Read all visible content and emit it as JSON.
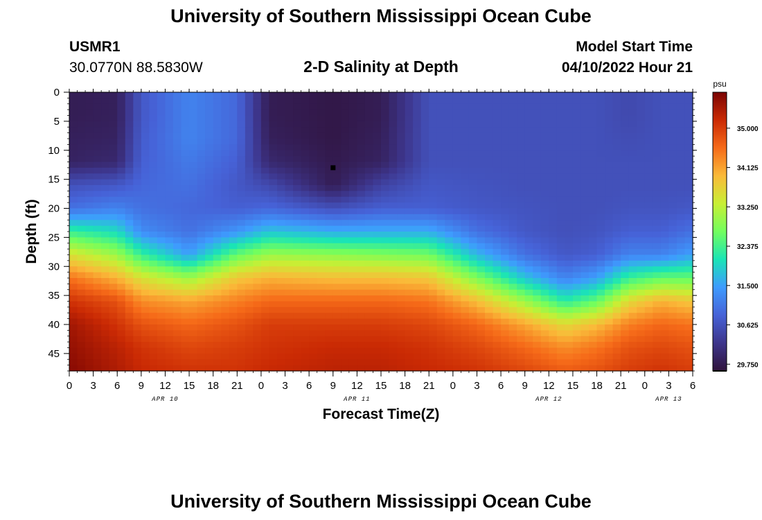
{
  "page": {
    "title": "University of Southern Mississippi Ocean Cube",
    "footer_title": "University of Southern Mississippi Ocean Cube",
    "station_id": "USMR1",
    "station_coords": "30.0770N  88.5830W",
    "model_start_label": "Model Start Time",
    "model_start_value": "04/10/2022 Hour 21"
  },
  "chart_data": {
    "type": "heatmap",
    "title": "2-D Salinity at Depth",
    "xlabel": "Forecast Time(Z)",
    "ylabel": "Depth (ft)",
    "x_unit": "hours since 04/10 00Z",
    "xlim": [
      0,
      78
    ],
    "ylim": [
      0,
      48
    ],
    "y_inverted": true,
    "x_ticks": [
      {
        "value": 0,
        "label": "0"
      },
      {
        "value": 3,
        "label": "3"
      },
      {
        "value": 6,
        "label": "6"
      },
      {
        "value": 9,
        "label": "9"
      },
      {
        "value": 12,
        "label": "12"
      },
      {
        "value": 15,
        "label": "15"
      },
      {
        "value": 18,
        "label": "18"
      },
      {
        "value": 21,
        "label": "21"
      },
      {
        "value": 24,
        "label": "0"
      },
      {
        "value": 27,
        "label": "3"
      },
      {
        "value": 30,
        "label": "6"
      },
      {
        "value": 33,
        "label": "9"
      },
      {
        "value": 36,
        "label": "12"
      },
      {
        "value": 39,
        "label": "15"
      },
      {
        "value": 42,
        "label": "18"
      },
      {
        "value": 45,
        "label": "21"
      },
      {
        "value": 48,
        "label": "0"
      },
      {
        "value": 51,
        "label": "3"
      },
      {
        "value": 54,
        "label": "6"
      },
      {
        "value": 57,
        "label": "9"
      },
      {
        "value": 60,
        "label": "12"
      },
      {
        "value": 63,
        "label": "15"
      },
      {
        "value": 66,
        "label": "18"
      },
      {
        "value": 69,
        "label": "21"
      },
      {
        "value": 72,
        "label": "0"
      },
      {
        "value": 75,
        "label": "3"
      },
      {
        "value": 78,
        "label": "6"
      }
    ],
    "day_labels": [
      {
        "value": 12,
        "label": "APR 10"
      },
      {
        "value": 36,
        "label": "APR 11"
      },
      {
        "value": 60,
        "label": "APR 12"
      },
      {
        "value": 75,
        "label": "APR 13"
      }
    ],
    "y_ticks": [
      0,
      5,
      10,
      15,
      20,
      25,
      30,
      35,
      40,
      45
    ],
    "colorbar": {
      "unit": "psu",
      "min": 29.6,
      "max": 35.8,
      "ticks": [
        "35.000",
        "34.125",
        "33.250",
        "32.375",
        "31.500",
        "30.625",
        "29.750"
      ],
      "colors": [
        "#30123b",
        "#3d358b",
        "#4662d7",
        "#3e9bfe",
        "#1ae4b6",
        "#72fe5e",
        "#c8ef34",
        "#faba39",
        "#f66b19",
        "#ca2a04",
        "#7a0403"
      ]
    },
    "marker": {
      "x": 33,
      "y": 13
    },
    "profiles": [
      {
        "x": 0,
        "salinity": [
          29.8,
          29.8,
          29.85,
          29.9,
          30.6,
          31.0,
          32.3,
          33.5,
          34.5,
          35.1,
          35.5,
          35.6,
          35.7
        ]
      },
      {
        "x": 6,
        "salinity": [
          29.85,
          29.85,
          29.9,
          30.0,
          30.7,
          31.2,
          32.0,
          33.0,
          34.0,
          34.8,
          35.1,
          35.3,
          35.4
        ]
      },
      {
        "x": 9,
        "salinity": [
          30.7,
          30.7,
          30.75,
          30.8,
          30.9,
          31.0,
          31.3,
          32.3,
          33.5,
          34.3,
          34.8,
          35.1,
          35.2
        ]
      },
      {
        "x": 15,
        "salinity": [
          31.2,
          31.2,
          31.2,
          31.1,
          31.0,
          30.9,
          31.0,
          31.5,
          33.0,
          34.1,
          34.6,
          34.9,
          35.1
        ]
      },
      {
        "x": 21,
        "salinity": [
          30.9,
          30.9,
          30.9,
          30.8,
          30.7,
          30.8,
          31.4,
          32.6,
          33.8,
          34.4,
          34.8,
          35.0,
          35.1
        ]
      },
      {
        "x": 25,
        "salinity": [
          29.8,
          29.8,
          29.85,
          30.0,
          30.5,
          30.9,
          31.8,
          33.0,
          34.0,
          34.6,
          35.0,
          35.1,
          35.2
        ]
      },
      {
        "x": 33,
        "salinity": [
          29.7,
          29.7,
          29.7,
          29.75,
          29.8,
          30.6,
          31.6,
          32.9,
          33.9,
          34.6,
          35.0,
          35.2,
          35.3
        ]
      },
      {
        "x": 39,
        "salinity": [
          29.8,
          29.8,
          29.85,
          29.9,
          30.4,
          30.8,
          31.6,
          32.8,
          33.9,
          34.6,
          35.0,
          35.2,
          35.3
        ]
      },
      {
        "x": 45,
        "salinity": [
          30.6,
          30.6,
          30.6,
          30.6,
          30.7,
          30.8,
          31.6,
          32.7,
          33.8,
          34.5,
          34.9,
          35.1,
          35.2
        ]
      },
      {
        "x": 51,
        "salinity": [
          30.6,
          30.6,
          30.6,
          30.6,
          30.65,
          30.7,
          31.0,
          31.7,
          32.8,
          33.9,
          34.6,
          34.9,
          35.1
        ]
      },
      {
        "x": 57,
        "salinity": [
          30.6,
          30.6,
          30.6,
          30.6,
          30.6,
          30.65,
          30.7,
          31.0,
          31.8,
          33.0,
          34.1,
          34.6,
          34.9
        ]
      },
      {
        "x": 62,
        "salinity": [
          30.6,
          30.6,
          30.6,
          30.6,
          30.6,
          30.6,
          30.6,
          30.7,
          31.2,
          32.2,
          33.6,
          34.3,
          34.7
        ]
      },
      {
        "x": 66,
        "salinity": [
          30.6,
          30.6,
          30.6,
          30.6,
          30.6,
          30.6,
          30.65,
          30.8,
          31.5,
          32.6,
          33.9,
          34.5,
          34.8
        ]
      },
      {
        "x": 70,
        "salinity": [
          30.5,
          30.5,
          30.55,
          30.6,
          30.6,
          30.65,
          30.8,
          31.2,
          32.3,
          33.6,
          34.4,
          34.8,
          35.0
        ]
      },
      {
        "x": 74,
        "salinity": [
          30.6,
          30.6,
          30.6,
          30.6,
          30.6,
          30.65,
          30.8,
          31.2,
          32.6,
          34.0,
          34.6,
          34.9,
          35.1
        ]
      },
      {
        "x": 78,
        "salinity": [
          30.6,
          30.6,
          30.6,
          30.6,
          30.6,
          30.7,
          31.0,
          31.5,
          32.6,
          33.8,
          34.5,
          34.8,
          35.0
        ]
      }
    ],
    "profile_depths": [
      0,
      4,
      8,
      12,
      16,
      20,
      24,
      28,
      32,
      36,
      40,
      44,
      48
    ]
  }
}
